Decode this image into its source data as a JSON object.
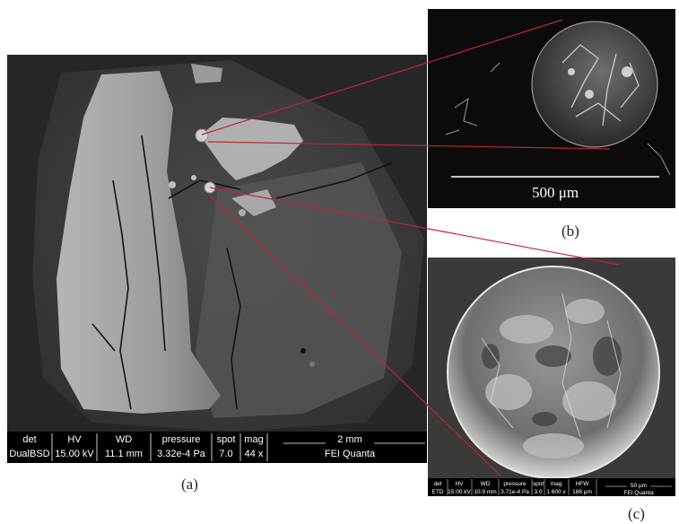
{
  "panel_a": {
    "caption": "(a)",
    "databar": {
      "headers": [
        "det",
        "HV",
        "WD",
        "pressure",
        "spot",
        "mag"
      ],
      "values": [
        "DualBSD",
        "15.00 kV",
        "11.1 mm",
        "3.32e-4 Pa",
        "7.0",
        "44 x"
      ],
      "scale": "2 mm",
      "instrument": "FEI Quanta"
    }
  },
  "panel_b": {
    "caption": "(b)",
    "scale": "500 μm"
  },
  "panel_c": {
    "caption": "(c)",
    "databar": {
      "headers": [
        "det",
        "HV",
        "WD",
        "pressure",
        "spot",
        "mag",
        "HFW"
      ],
      "values": [
        "ETD",
        "15.00 kV",
        "10.9 mm",
        "3.71e-4 Pa",
        "3.0",
        "1 600 x",
        "186 μm"
      ],
      "scale": "50 μm",
      "instrument": "FEI Quanta"
    }
  },
  "colors": {
    "leader_lines": "#c0262c"
  }
}
